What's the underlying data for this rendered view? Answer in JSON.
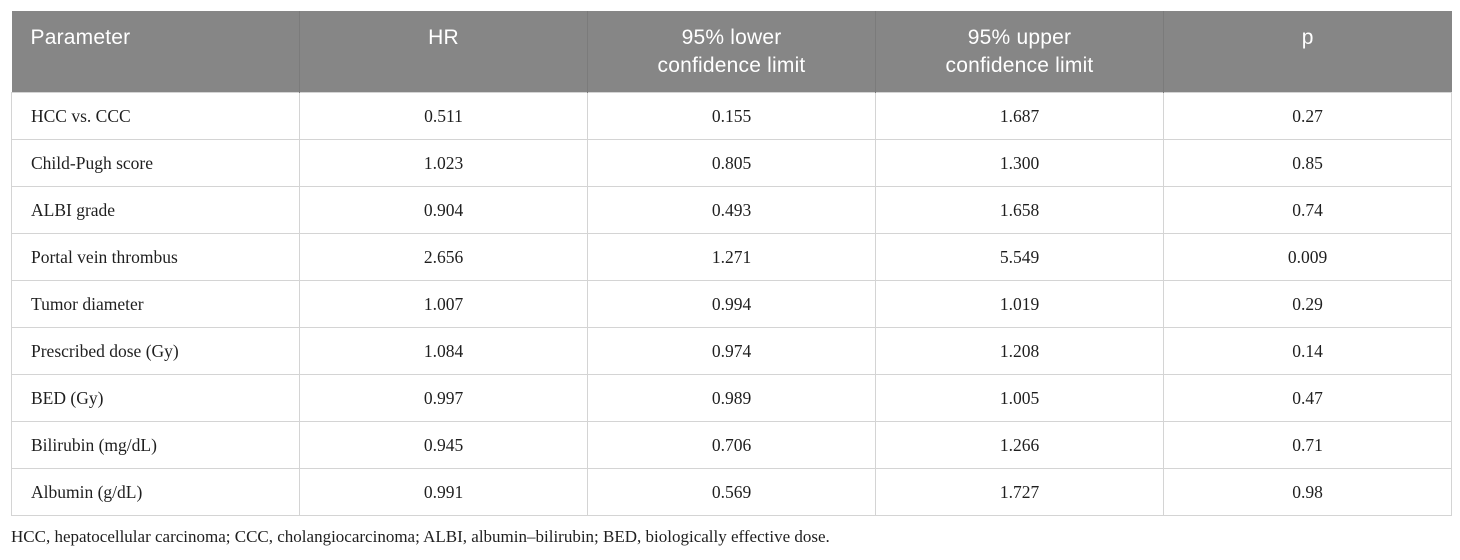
{
  "table": {
    "columns": [
      {
        "key": "parameter",
        "label": "Parameter"
      },
      {
        "key": "hr",
        "label": "HR"
      },
      {
        "key": "lower_cl",
        "label": "95% lower\nconfidence limit"
      },
      {
        "key": "upper_cl",
        "label": "95% upper\nconfidence limit"
      },
      {
        "key": "p",
        "label": "p"
      }
    ],
    "rows": [
      {
        "parameter": "HCC vs. CCC",
        "hr": "0.511",
        "lower_cl": "0.155",
        "upper_cl": "1.687",
        "p": "0.27"
      },
      {
        "parameter": "Child-Pugh score",
        "hr": "1.023",
        "lower_cl": "0.805",
        "upper_cl": "1.300",
        "p": "0.85"
      },
      {
        "parameter": "ALBI grade",
        "hr": "0.904",
        "lower_cl": "0.493",
        "upper_cl": "1.658",
        "p": "0.74"
      },
      {
        "parameter": "Portal vein thrombus",
        "hr": "2.656",
        "lower_cl": "1.271",
        "upper_cl": "5.549",
        "p": "0.009"
      },
      {
        "parameter": "Tumor diameter",
        "hr": "1.007",
        "lower_cl": "0.994",
        "upper_cl": "1.019",
        "p": "0.29"
      },
      {
        "parameter": "Prescribed dose (Gy)",
        "hr": "1.084",
        "lower_cl": "0.974",
        "upper_cl": "1.208",
        "p": "0.14"
      },
      {
        "parameter": "BED (Gy)",
        "hr": "0.997",
        "lower_cl": "0.989",
        "upper_cl": "1.005",
        "p": "0.47"
      },
      {
        "parameter": "Bilirubin (mg/dL)",
        "hr": "0.945",
        "lower_cl": "0.706",
        "upper_cl": "1.266",
        "p": "0.71"
      },
      {
        "parameter": "Albumin (g/dL)",
        "hr": "0.991",
        "lower_cl": "0.569",
        "upper_cl": "1.727",
        "p": "0.98"
      }
    ]
  },
  "footnote": "HCC, hepatocellular carcinoma; CCC, cholangiocarcinoma; ALBI, albumin–bilirubin; BED, biologically effective dose.",
  "colors": {
    "header_bg": "#868686",
    "header_text": "#ffffff",
    "body_text": "#1f1f1f",
    "border": "#d4d4d4"
  }
}
